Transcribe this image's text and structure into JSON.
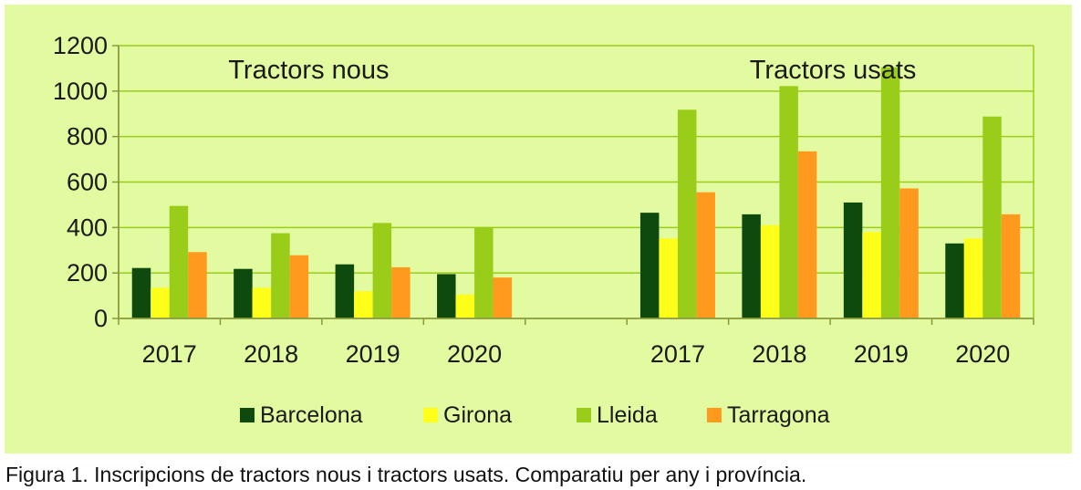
{
  "chart_data": {
    "type": "bar",
    "groups": [
      {
        "title": "Tractors nous",
        "categories": [
          "2017",
          "2018",
          "2019",
          "2020"
        ],
        "series": [
          {
            "name": "Barcelona",
            "values": [
              222,
              218,
              238,
              195
            ]
          },
          {
            "name": "Girona",
            "values": [
              135,
              135,
              120,
              105
            ]
          },
          {
            "name": "Lleida",
            "values": [
              495,
              375,
              420,
              400
            ]
          },
          {
            "name": "Tarragona",
            "values": [
              292,
              278,
              225,
              180
            ]
          }
        ]
      },
      {
        "title": "Tractors usats",
        "categories": [
          "2017",
          "2018",
          "2019",
          "2020"
        ],
        "series": [
          {
            "name": "Barcelona",
            "values": [
              465,
              458,
              510,
              330
            ]
          },
          {
            "name": "Girona",
            "values": [
              352,
              410,
              380,
              352
            ]
          },
          {
            "name": "Lleida",
            "values": [
              918,
              1022,
              1105,
              888
            ]
          },
          {
            "name": "Tarragona",
            "values": [
              555,
              735,
              572,
              458
            ]
          }
        ]
      }
    ],
    "yticks": [
      "0",
      "200",
      "400",
      "600",
      "800",
      "1000",
      "1200"
    ],
    "ylim": [
      0,
      1200
    ],
    "grid": true,
    "legend_position": "bottom",
    "colors": {
      "Barcelona": "#0e4a0e",
      "Girona": "#ffff1a",
      "Lleida": "#9acd1a",
      "Tarragona": "#ff9a1e",
      "background": "#e2fba0",
      "grid": "#9acd1a",
      "axis": "#8a9a3a"
    }
  },
  "caption": "Figura 1. Inscripcions de tractors nous i tractors usats. Comparatiu per any i província."
}
